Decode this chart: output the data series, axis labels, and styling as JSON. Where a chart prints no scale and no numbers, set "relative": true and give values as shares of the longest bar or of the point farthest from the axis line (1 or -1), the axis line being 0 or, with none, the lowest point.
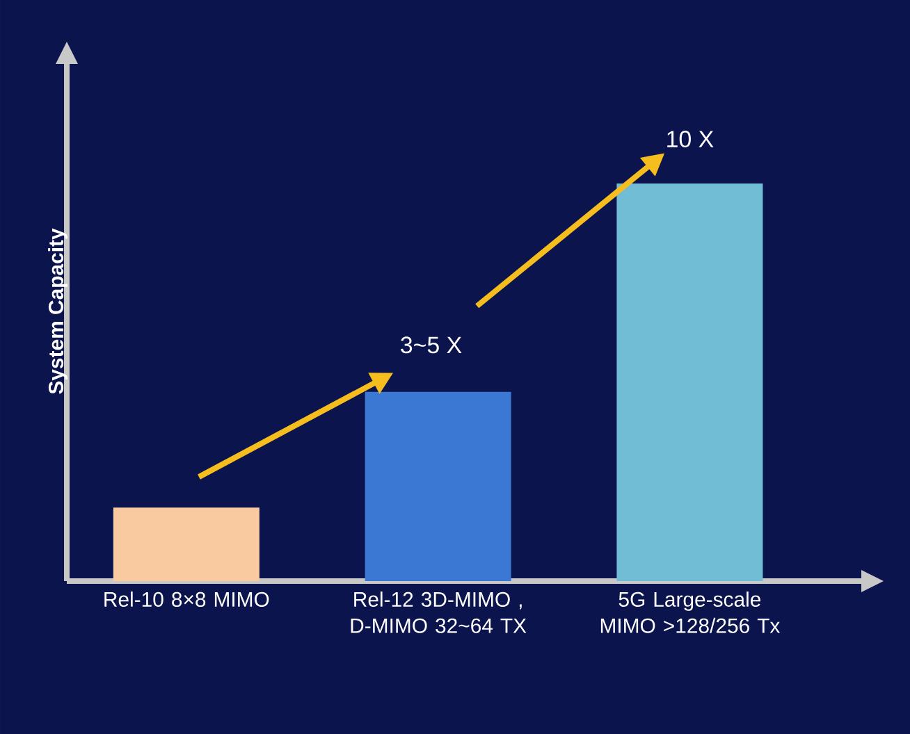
{
  "chart_data": {
    "type": "bar",
    "relative": true,
    "ylabel": "System Capacity",
    "categories": [
      "Rel-10 8×8 MIMO",
      "Rel-12 3D-MIMO , D-MIMO 32~64 TX",
      "5G Large-scale MIMO >128/256 Tx"
    ],
    "values": [
      0.185,
      0.476,
      1
    ],
    "colors": [
      "#f9caa0",
      "#3a78d4",
      "#72bdd6"
    ],
    "annotations": [
      "3~5 X",
      "10 X"
    ]
  }
}
